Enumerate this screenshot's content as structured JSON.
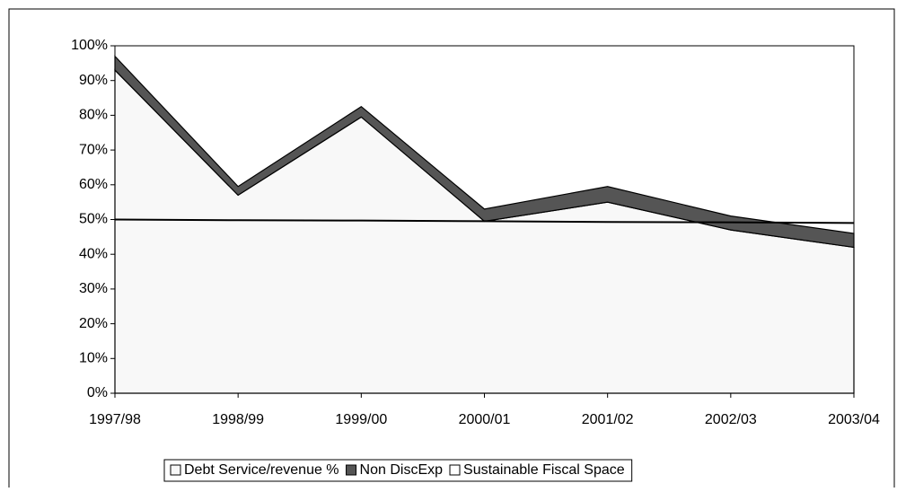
{
  "chart_data": {
    "type": "stacked-area",
    "categories": [
      "1997/98",
      "1998/99",
      "1999/00",
      "2000/01",
      "2001/02",
      "2002/03",
      "2003/04"
    ],
    "series": [
      {
        "name": "Debt Service/revenue %",
        "color": "#f8f8f8",
        "values": [
          93,
          57,
          79.5,
          49.5,
          55,
          47,
          42
        ]
      },
      {
        "name": "Non DiscExp",
        "color": "#555555",
        "values": [
          4,
          2.5,
          3,
          3.5,
          4.5,
          4,
          4
        ]
      },
      {
        "name": "Sustainable Fiscal Space",
        "color": "#ffffff",
        "kind": "line",
        "values": [
          50,
          49.8,
          49.7,
          49.5,
          49.3,
          49.2,
          49
        ]
      }
    ],
    "ylim": [
      0,
      100
    ],
    "yticks": [
      {
        "value": 0,
        "label": "0%"
      },
      {
        "value": 10,
        "label": "10%"
      },
      {
        "value": 20,
        "label": "20%"
      },
      {
        "value": 30,
        "label": "30%"
      },
      {
        "value": 40,
        "label": "40%"
      },
      {
        "value": 50,
        "label": "50%"
      },
      {
        "value": 60,
        "label": "60%"
      },
      {
        "value": 70,
        "label": "70%"
      },
      {
        "value": 80,
        "label": "80%"
      },
      {
        "value": 90,
        "label": "90%"
      },
      {
        "value": 100,
        "label": "100%"
      }
    ],
    "legend": "bottom"
  }
}
